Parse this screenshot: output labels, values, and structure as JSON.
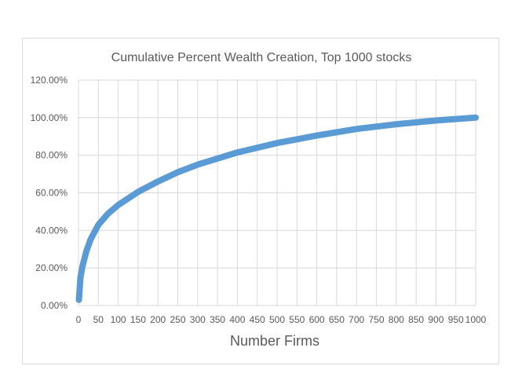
{
  "chart_data": {
    "type": "line",
    "title": "Cumulative Percent Wealth Creation, Top 1000 stocks",
    "xlabel": "Number Firms",
    "ylabel": "",
    "xlim": [
      0,
      1000
    ],
    "ylim": [
      0,
      1.2
    ],
    "grid": true,
    "legend": "none",
    "x_ticks": [
      "0",
      "50",
      "100",
      "150",
      "200",
      "250",
      "300",
      "350",
      "400",
      "450",
      "500",
      "550",
      "600",
      "650",
      "700",
      "750",
      "800",
      "850",
      "900",
      "950",
      "1000"
    ],
    "y_ticks": [
      "0.00%",
      "20.00%",
      "40.00%",
      "60.00%",
      "80.00%",
      "100.00%",
      "120.00%"
    ],
    "series": [
      {
        "color": "#5b9bd5",
        "x": [
          1,
          5,
          10,
          20,
          30,
          50,
          75,
          100,
          150,
          200,
          250,
          300,
          400,
          500,
          600,
          700,
          800,
          900,
          1000
        ],
        "y": [
          0.03,
          0.15,
          0.21,
          0.29,
          0.35,
          0.43,
          0.49,
          0.535,
          0.605,
          0.66,
          0.71,
          0.75,
          0.815,
          0.865,
          0.905,
          0.94,
          0.965,
          0.985,
          1.0
        ]
      }
    ]
  }
}
